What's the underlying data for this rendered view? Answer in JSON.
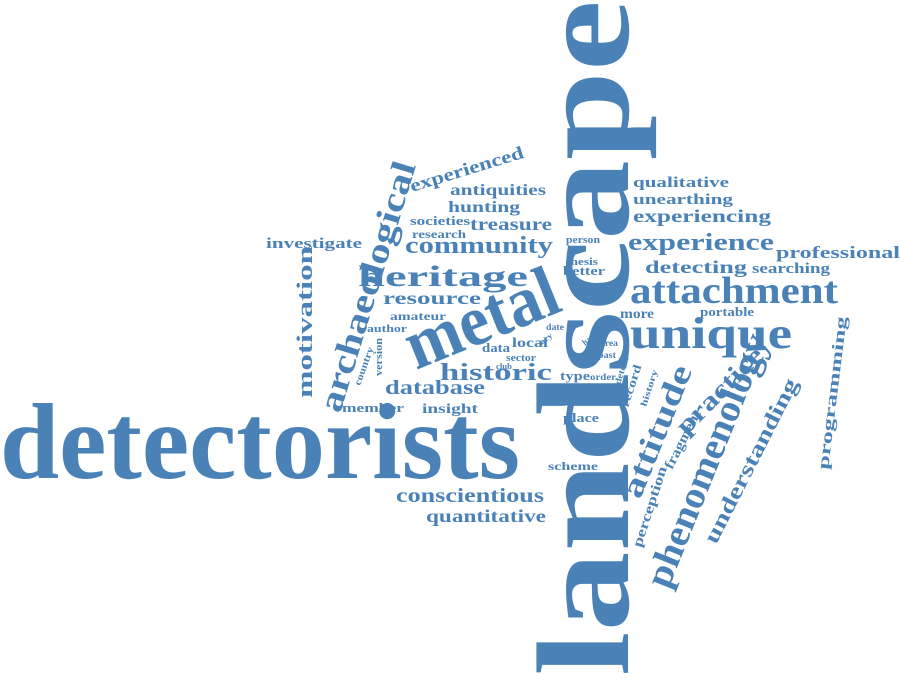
{
  "color": "#4a82b7",
  "words": [
    "landscape",
    "detectorists",
    "metal",
    "unique",
    "attachment",
    "phenomenology",
    "archaeological",
    "heritage",
    "community",
    "historic",
    "experience",
    "attitude",
    "practice",
    "motivation",
    "understanding",
    "conscientious",
    "quantitative",
    "database",
    "resource",
    "experienced",
    "experiencing",
    "qualitative",
    "unearthing",
    "professional",
    "detecting",
    "searching",
    "programming",
    "perception",
    "fragment",
    "antiquities",
    "hunting",
    "treasure",
    "societies",
    "research",
    "investigate",
    "insight",
    "member",
    "amateur",
    "author",
    "local",
    "data",
    "type",
    "record",
    "place",
    "scheme",
    "more",
    "portable",
    "better",
    "thesis",
    "person",
    "version",
    "country",
    "sector",
    "club",
    "order",
    "history",
    "past",
    "detect",
    "area",
    "hand",
    "acy",
    "date"
  ]
}
